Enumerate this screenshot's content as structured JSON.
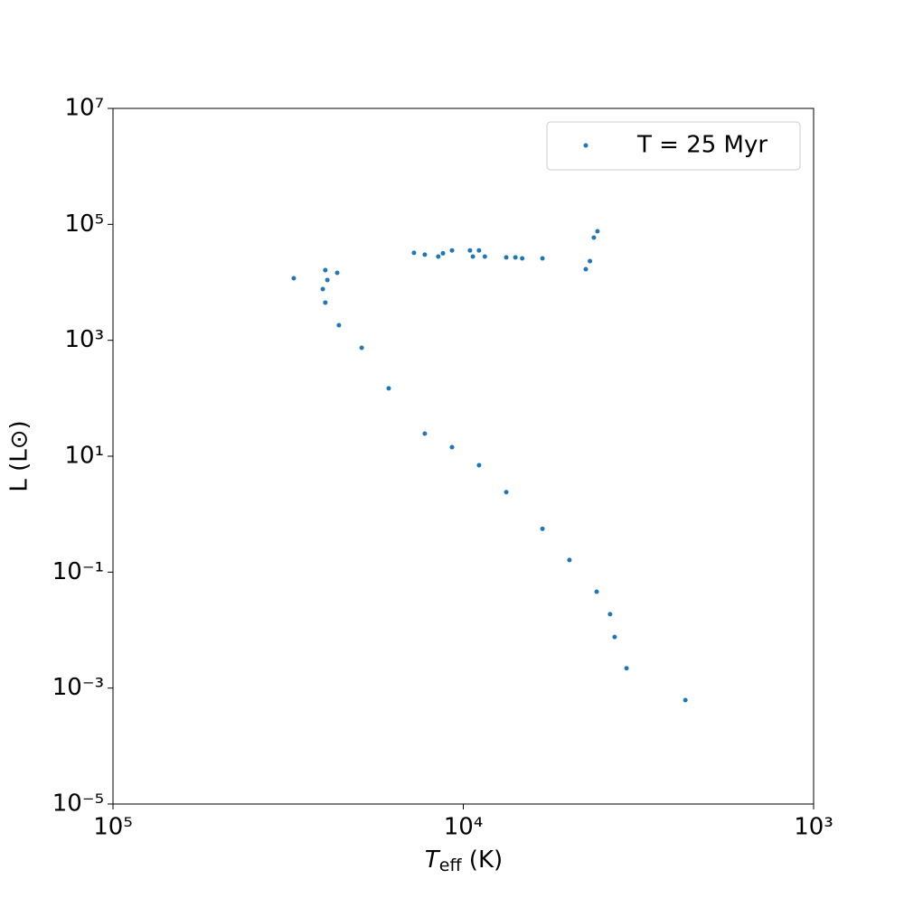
{
  "chart_data": {
    "type": "scatter",
    "xlabel": [
      "T",
      "eff",
      " (K)"
    ],
    "ylabel": "L (L⊙)",
    "xlog": true,
    "ylog": true,
    "xlim": [
      100000,
      1000
    ],
    "ylim": [
      1e-05,
      10000000
    ],
    "xticks": [
      {
        "value": 100000,
        "label": "10⁵"
      },
      {
        "value": 10000,
        "label": "10⁴"
      },
      {
        "value": 1000,
        "label": "10³"
      }
    ],
    "yticks": [
      {
        "value": 1e-05,
        "label": "10⁻⁵"
      },
      {
        "value": 0.001,
        "label": "10⁻³"
      },
      {
        "value": 0.1,
        "label": "10⁻¹"
      },
      {
        "value": 10,
        "label": "10¹"
      },
      {
        "value": 1000,
        "label": "10³"
      },
      {
        "value": 100000,
        "label": "10⁵"
      },
      {
        "value": 10000000,
        "label": "10⁷"
      }
    ],
    "legend": "upper right",
    "series": [
      {
        "name": "T = 25 Myr",
        "color": "#1f77b4",
        "x": [
          2323,
          3420,
          3698,
          3811,
          4161,
          4977,
          5943,
          7540,
          9016,
          10770,
          12880,
          16330,
          19500,
          22650,
          24770,
          25180,
          24440,
          22910,
          30480,
          24770,
          13830,
          12880,
          11430,
          10770,
          9570,
          9390,
          9020,
          8680,
          7540,
          7100,
          6790,
          5943,
          4470,
          4350,
          4240,
          4140,
          11790
        ],
        "y": [
          0.00062,
          0.0022,
          0.0076,
          0.0188,
          0.046,
          0.162,
          0.56,
          2.4,
          7.0,
          14.3,
          24.5,
          148,
          741,
          1820,
          4470,
          7640,
          10960,
          14590,
          11750,
          16200,
          32200,
          30000,
          31600,
          35500,
          35500,
          27800,
          35500,
          27800,
          26900,
          26900,
          25900,
          25900,
          16800,
          23200,
          59100,
          75900,
          27800
        ]
      }
    ]
  }
}
